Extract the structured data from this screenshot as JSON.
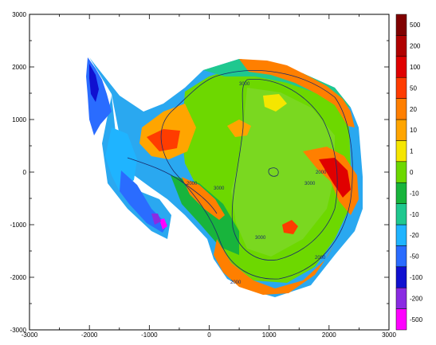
{
  "chart_data": {
    "type": "heatmap",
    "title": "",
    "xlabel": "",
    "ylabel": "",
    "xlim": [
      -3000,
      3000
    ],
    "ylim": [
      -3000,
      3000
    ],
    "x_ticks": [
      -3000,
      -2000,
      -1000,
      0,
      1000,
      2000,
      3000
    ],
    "y_ticks": [
      -3000,
      -2000,
      -1000,
      0,
      1000,
      2000,
      3000
    ],
    "x_tick_labels": [
      "-3000",
      "-2000",
      "-1000",
      "0",
      "1000",
      "2000",
      "3000"
    ],
    "y_tick_labels": [
      "-3000",
      "-2000",
      "-1000",
      "0",
      "1000",
      "2000",
      "3000"
    ],
    "colorbar": {
      "labels": [
        "-50",
        "-20",
        "-10",
        "-50",
        "-20",
        "-10",
        "-1",
        "0",
        "1",
        "10",
        "20",
        "50",
        "10",
        "20",
        "50"
      ],
      "label_suffixes": [
        "0",
        "0",
        "0",
        "",
        "",
        "",
        "0",
        "",
        "",
        "",
        "",
        "",
        "0",
        "0",
        "0"
      ],
      "colors": [
        "#ff00ff",
        "#8a2be2",
        "#1010d0",
        "#2a6cff",
        "#1fb4ff",
        "#1fc88f",
        "#18b43c",
        "#6dd800",
        "#f5e600",
        "#ffa500",
        "#ff7f00",
        "#ff3c00",
        "#e00000",
        "#b00000",
        "#800000"
      ]
    },
    "contour_labels": [
      "3000",
      "3000",
      "3000",
      "3000",
      "2000",
      "2000",
      "2000",
      "2000"
    ],
    "note_colors": {
      "ocean": "#ffffff",
      "frame": "#000000",
      "contour": "#1a2a6a"
    }
  }
}
